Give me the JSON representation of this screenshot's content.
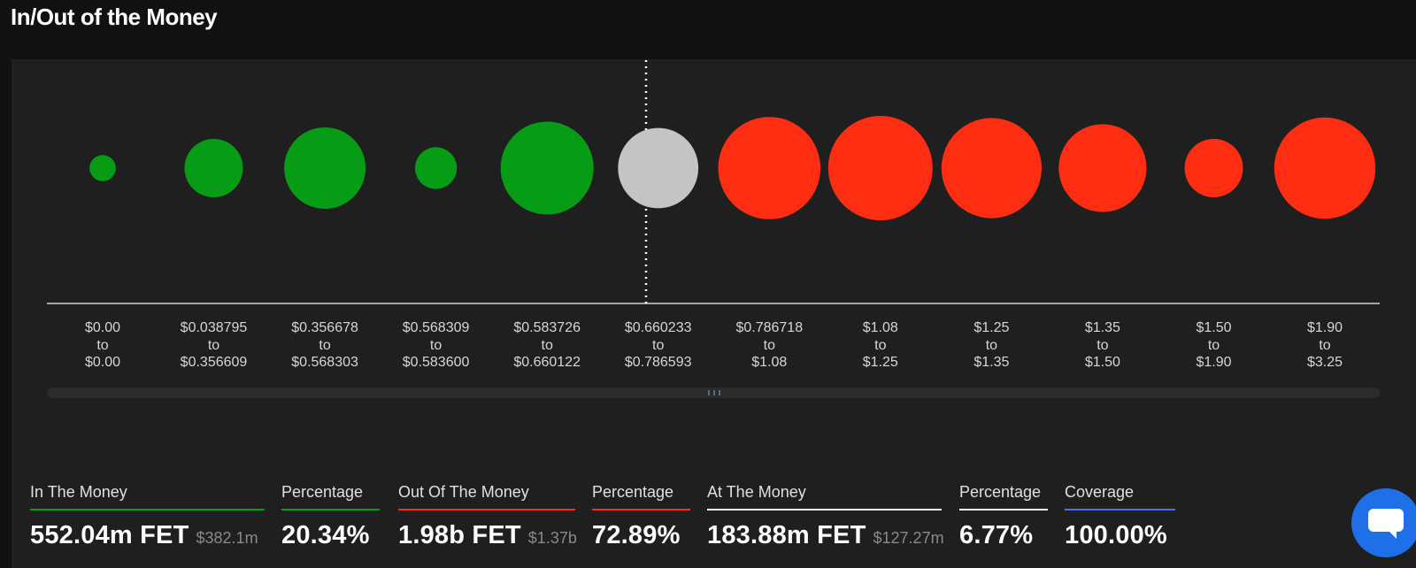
{
  "page": {
    "title": "In/Out of the Money"
  },
  "colors": {
    "in_the_money": "#079c16",
    "out_of_the_money": "#ff2e12",
    "at_the_money": "#c4c4c4",
    "coverage": "#4a6ef0",
    "background": "#1f1f1f"
  },
  "chart_data": {
    "type": "bubble",
    "x_ranges": [
      {
        "from": "$0.00",
        "to": "$0.00",
        "status": "in",
        "relative_size": 0.25
      },
      {
        "from": "$0.038795",
        "to": "$0.356609",
        "status": "in",
        "relative_size": 0.56
      },
      {
        "from": "$0.356678",
        "to": "$0.568303",
        "status": "in",
        "relative_size": 0.78
      },
      {
        "from": "$0.568309",
        "to": "$0.583600",
        "status": "in",
        "relative_size": 0.4
      },
      {
        "from": "$0.583726",
        "to": "$0.660122",
        "status": "in",
        "relative_size": 0.89
      },
      {
        "from": "$0.660233",
        "to": "$0.786593",
        "status": "at",
        "relative_size": 0.77
      },
      {
        "from": "$0.786718",
        "to": "$1.08",
        "status": "out",
        "relative_size": 0.98
      },
      {
        "from": "$1.08",
        "to": "$1.25",
        "status": "out",
        "relative_size": 1.0
      },
      {
        "from": "$1.25",
        "to": "$1.35",
        "status": "out",
        "relative_size": 0.96
      },
      {
        "from": "$1.35",
        "to": "$1.50",
        "status": "out",
        "relative_size": 0.84
      },
      {
        "from": "$1.50",
        "to": "$1.90",
        "status": "out",
        "relative_size": 0.56
      },
      {
        "from": "$1.90",
        "to": "$3.25",
        "status": "out",
        "relative_size": 0.97
      }
    ],
    "range_joiner": "to",
    "current_price_marker_index": 5,
    "legend": "none"
  },
  "stats": [
    {
      "label": "In The Money",
      "value": "552.04m FET",
      "sub": "$382.1m",
      "color": "#079c16"
    },
    {
      "label": "Percentage",
      "value": "20.34%",
      "sub": "",
      "color": "#079c16"
    },
    {
      "label": "Out Of The Money",
      "value": "1.98b FET",
      "sub": "$1.37b",
      "color": "#ff2e12"
    },
    {
      "label": "Percentage",
      "value": "72.89%",
      "sub": "",
      "color": "#ff2e12"
    },
    {
      "label": "At The Money",
      "value": "183.88m FET",
      "sub": "$127.27m",
      "color": "#ffffff"
    },
    {
      "label": "Percentage",
      "value": "6.77%",
      "sub": "",
      "color": "#ffffff"
    },
    {
      "label": "Coverage",
      "value": "100.00%",
      "sub": "",
      "color": "#4a6ef0"
    }
  ],
  "chat": {
    "icon": "chat-bubble-icon"
  }
}
